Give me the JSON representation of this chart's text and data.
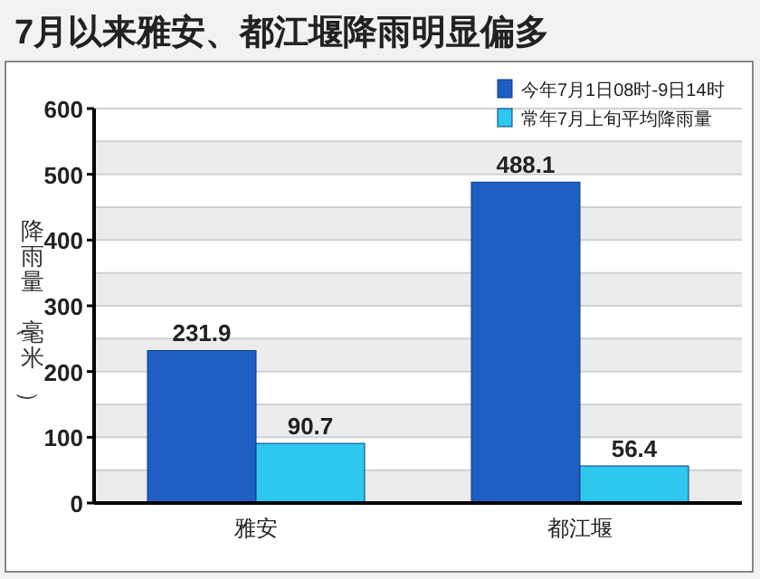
{
  "chart_data": {
    "type": "bar",
    "title": "7月以来雅安、都江堰降雨明显偏多",
    "ylabel": "降雨量（毫米）",
    "categories": [
      "雅安",
      "都江堰"
    ],
    "series": [
      {
        "name": "今年7月1日08时-9日14时",
        "color": "#1f5fc4",
        "values": [
          231.9,
          488.1
        ]
      },
      {
        "name": "常年7月上旬平均降雨量",
        "color": "#2ec8ee",
        "values": [
          90.7,
          56.4
        ]
      }
    ],
    "ylim": [
      0,
      600
    ],
    "yticks": [
      0,
      {
        "value": 50,
        "label": null
      },
      100,
      {
        "value": 150,
        "label": null
      },
      200,
      {
        "value": 250,
        "label": null
      },
      300,
      {
        "value": 350,
        "label": null
      },
      400,
      {
        "value": 450,
        "label": null
      },
      500,
      {
        "value": 550,
        "label": null
      },
      600
    ],
    "grid": "y",
    "legend": "top right",
    "data_labels": true
  }
}
